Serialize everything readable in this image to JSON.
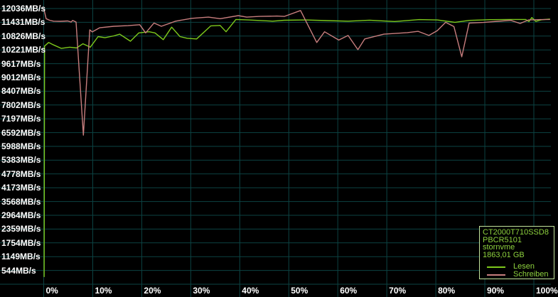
{
  "chart_data": {
    "type": "line",
    "title": "",
    "grid": true,
    "legend_position": "bottom-right",
    "x_axis": {
      "unit": "%",
      "min": 0,
      "max": 100,
      "tick_labels": [
        "0%",
        "10%",
        "20%",
        "30%",
        "40%",
        "50%",
        "60%",
        "70%",
        "80%",
        "90%",
        "100%"
      ]
    },
    "y_axis": {
      "unit": "MB/s",
      "top_value": 12036,
      "step": 605,
      "tick_values": [
        12036,
        11431,
        10826,
        10221,
        9617,
        9012,
        8407,
        7802,
        7197,
        6592,
        5988,
        5383,
        4778,
        4173,
        3568,
        2964,
        2359,
        1754,
        1149,
        544
      ],
      "tick_labels": [
        "12036MB/s",
        "11431MB/s",
        "10826MB/s",
        "10221MB/s",
        "9617MB/s",
        "9012MB/s",
        "8407MB/s",
        "7802MB/s",
        "7197MB/s",
        "6592MB/s",
        "5988MB/s",
        "5383MB/s",
        "4778MB/s",
        "4173MB/s",
        "3568MB/s",
        "2964MB/s",
        "2359MB/s",
        "1754MB/s",
        "1149MB/s",
        "544MB/s"
      ]
    },
    "series": [
      {
        "name": "Lesen",
        "color": "#7dc91c",
        "points": [
          [
            0.08,
            250
          ],
          [
            0.18,
            10390
          ],
          [
            1.0,
            10545
          ],
          [
            2.0,
            10440
          ],
          [
            3.6,
            10285
          ],
          [
            5.3,
            10340
          ],
          [
            6.7,
            10305
          ],
          [
            8.0,
            10490
          ],
          [
            9.5,
            10340
          ],
          [
            11.1,
            10805
          ],
          [
            12.5,
            10755
          ],
          [
            14.3,
            10835
          ],
          [
            15.5,
            10910
          ],
          [
            17.7,
            10600
          ],
          [
            19.4,
            10965
          ],
          [
            21.5,
            11015
          ],
          [
            22.7,
            10965
          ],
          [
            24.4,
            10670
          ],
          [
            26.1,
            11220
          ],
          [
            27.8,
            10805
          ],
          [
            29.3,
            10730
          ],
          [
            31.2,
            10700
          ],
          [
            34.1,
            11275
          ],
          [
            36.0,
            11295
          ],
          [
            37.2,
            11015
          ],
          [
            39.2,
            11555
          ],
          [
            41.8,
            11535
          ],
          [
            46.7,
            11480
          ],
          [
            49.1,
            11520
          ],
          [
            53.4,
            11535
          ],
          [
            57.8,
            11505
          ],
          [
            62.1,
            11480
          ],
          [
            66.5,
            11525
          ],
          [
            71.6,
            11465
          ],
          [
            76.6,
            11550
          ],
          [
            80.3,
            11535
          ],
          [
            83.9,
            11430
          ],
          [
            86.8,
            11515
          ],
          [
            91.1,
            11545
          ],
          [
            95.2,
            11555
          ],
          [
            98.3,
            11555
          ],
          [
            99.0,
            11465
          ],
          [
            99.6,
            11640
          ],
          [
            100.4,
            11470
          ],
          [
            101.5,
            11540
          ],
          [
            103.3,
            11575
          ]
        ]
      },
      {
        "name": "Schreiben",
        "color": "#c87e7e",
        "points": [
          [
            0.0,
            12050
          ],
          [
            0.5,
            11590
          ],
          [
            1.2,
            11520
          ],
          [
            2.0,
            11480
          ],
          [
            3.4,
            11475
          ],
          [
            4.9,
            11490
          ],
          [
            5.6,
            11440
          ],
          [
            5.9,
            11515
          ],
          [
            6.6,
            11445
          ],
          [
            8.1,
            6480
          ],
          [
            9.4,
            11100
          ],
          [
            9.9,
            11010
          ],
          [
            11.4,
            11190
          ],
          [
            14.3,
            11255
          ],
          [
            17.2,
            11285
          ],
          [
            19.6,
            11325
          ],
          [
            20.8,
            10965
          ],
          [
            22.5,
            11400
          ],
          [
            24.0,
            11255
          ],
          [
            26.9,
            11480
          ],
          [
            30.2,
            11605
          ],
          [
            33.6,
            11660
          ],
          [
            36.0,
            11590
          ],
          [
            39.7,
            11725
          ],
          [
            41.4,
            11660
          ],
          [
            44.0,
            11690
          ],
          [
            47.6,
            11705
          ],
          [
            49.1,
            11690
          ],
          [
            52.4,
            11950
          ],
          [
            55.7,
            10545
          ],
          [
            57.3,
            11015
          ],
          [
            60.2,
            10650
          ],
          [
            62.1,
            10855
          ],
          [
            64.1,
            10230
          ],
          [
            65.5,
            10700
          ],
          [
            69.4,
            10910
          ],
          [
            74.2,
            10980
          ],
          [
            76.4,
            11035
          ],
          [
            78.6,
            10855
          ],
          [
            80.3,
            11065
          ],
          [
            82.0,
            11430
          ],
          [
            83.7,
            11245
          ],
          [
            85.3,
            9920
          ],
          [
            86.8,
            11400
          ],
          [
            89.7,
            11425
          ],
          [
            92.6,
            11475
          ],
          [
            95.3,
            11515
          ],
          [
            97.2,
            11380
          ],
          [
            98.9,
            11535
          ],
          [
            101.3,
            11550
          ],
          [
            103.3,
            11555
          ]
        ]
      }
    ]
  },
  "legend": {
    "device_model": "CT2000T710SSD8",
    "firmware": "PBCR5101",
    "driver": "stornvme",
    "capacity": "1863,01 GB",
    "read_label": "Lesen",
    "write_label": "Schreiben"
  },
  "colors": {
    "background": "#000000",
    "grid": "#0c4343",
    "axis_text": "#ffffff",
    "read_line": "#7dc91c",
    "write_line": "#c87e7e",
    "legend_border": "#c4e49c",
    "legend_text": "#8ed23e"
  }
}
